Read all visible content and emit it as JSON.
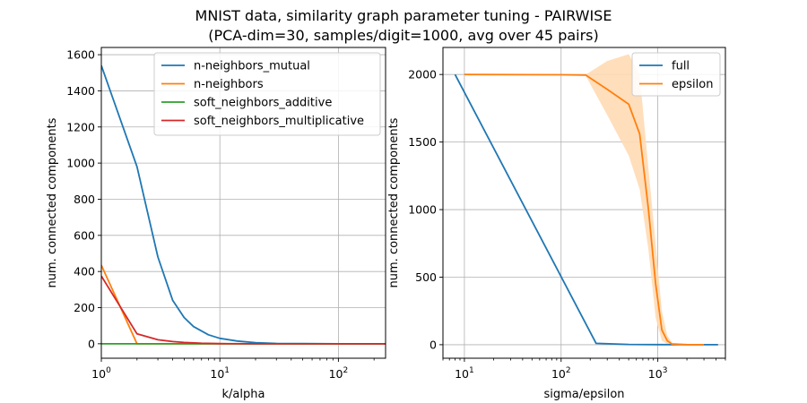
{
  "figure": {
    "title_line1": "MNIST data, similarity graph parameter tuning - PAIRWISE",
    "title_line2": "(PCA-dim=30, samples/digit=1000, avg over 45 pairs)"
  },
  "chart_data": [
    {
      "type": "line",
      "xscale": "log",
      "xlabel": "k/alpha",
      "ylabel": "num. connected components",
      "xlim": [
        1,
        250
      ],
      "ylim": [
        -80,
        1640
      ],
      "grid": true,
      "legend_position": "top-right",
      "xticks": [
        {
          "value": 1,
          "base": "10",
          "exp": "0"
        },
        {
          "value": 10,
          "base": "10",
          "exp": "1"
        },
        {
          "value": 100,
          "base": "10",
          "exp": "2"
        }
      ],
      "yticks": [
        0,
        200,
        400,
        600,
        800,
        1000,
        1200,
        1400,
        1600
      ],
      "series": [
        {
          "name": "n-neighbors_mutual",
          "color": "#1f77b4",
          "x": [
            1,
            2,
            3,
            4,
            5,
            6,
            8,
            10,
            14,
            20,
            30,
            50,
            100,
            250
          ],
          "y": [
            1540,
            980,
            480,
            240,
            145,
            95,
            50,
            30,
            15,
            6,
            2,
            1,
            0,
            0
          ]
        },
        {
          "name": "n-neighbors",
          "color": "#ff7f0e",
          "x": [
            1,
            2,
            3,
            5,
            10,
            50,
            250
          ],
          "y": [
            435,
            0,
            0,
            0,
            0,
            0,
            0
          ]
        },
        {
          "name": "soft_neighbors_additive",
          "color": "#2ca02c",
          "x": [
            1,
            2,
            5,
            10,
            50,
            250
          ],
          "y": [
            0,
            0,
            0,
            0,
            0,
            0
          ]
        },
        {
          "name": "soft_neighbors_multiplicative",
          "color": "#d62728",
          "x": [
            1,
            2,
            3,
            4,
            5,
            7,
            10,
            20,
            50,
            250
          ],
          "y": [
            375,
            55,
            22,
            12,
            7,
            3,
            1,
            0,
            0,
            0
          ]
        }
      ]
    },
    {
      "type": "line",
      "xscale": "log",
      "xlabel": "sigma/epsilon",
      "ylabel": "num. connected components",
      "xlim": [
        6,
        5000
      ],
      "ylim": [
        -100,
        2200
      ],
      "grid": true,
      "legend_position": "top-right",
      "xticks": [
        {
          "value": 10,
          "base": "10",
          "exp": "1"
        },
        {
          "value": 100,
          "base": "10",
          "exp": "2"
        },
        {
          "value": 1000,
          "base": "10",
          "exp": "3"
        }
      ],
      "yticks": [
        0,
        500,
        1000,
        1500,
        2000
      ],
      "series": [
        {
          "name": "full",
          "color": "#1f77b4",
          "x": [
            8,
            230,
            500,
            1000,
            2000,
            4200
          ],
          "y": [
            2000,
            10,
            2,
            1,
            0,
            0
          ]
        },
        {
          "name": "epsilon",
          "color": "#ff7f0e",
          "x": [
            10,
            100,
            180,
            300,
            500,
            650,
            800,
            950,
            1100,
            1250,
            1400,
            2000,
            3000
          ],
          "y": [
            2000,
            1998,
            1995,
            1890,
            1780,
            1560,
            1000,
            450,
            110,
            30,
            5,
            1,
            0
          ],
          "band_upper": [
            2000,
            2000,
            2000,
            2100,
            2150,
            2000,
            1300,
            750,
            250,
            70,
            15,
            2,
            0
          ],
          "band_lower": [
            2000,
            1996,
            1990,
            1700,
            1400,
            1150,
            700,
            200,
            30,
            5,
            0,
            0,
            0
          ],
          "band_color": "#ffdab4"
        }
      ]
    }
  ]
}
